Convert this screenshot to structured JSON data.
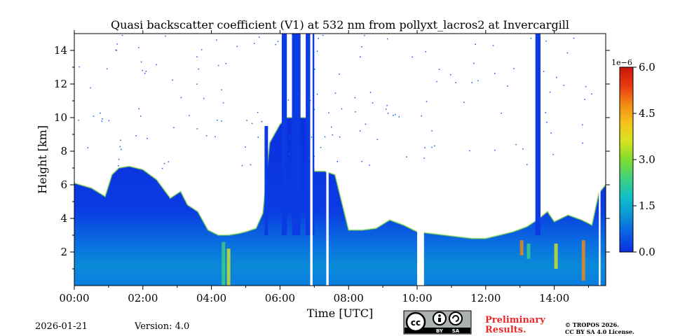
{
  "chart_data": {
    "type": "heatmap",
    "title": "Quasi backscatter coefficient (V1) at 532 nm from pollyxt_lacros2 at Invercargill",
    "xlabel": "Time [UTC]",
    "ylabel": "Height [km]",
    "x_ticks": [
      "00:00",
      "02:00",
      "04:00",
      "06:00",
      "08:00",
      "10:00",
      "12:00",
      "14:00"
    ],
    "y_ticks": [
      "2",
      "4",
      "6",
      "8",
      "10",
      "12",
      "14"
    ],
    "xlim_hours": [
      0,
      15.5
    ],
    "ylim_km": [
      0,
      15
    ],
    "colorbar": {
      "exponent": "1e−6",
      "ticks": [
        "0.0",
        "1.5",
        "3.0",
        "4.5",
        "6.0"
      ],
      "range": [
        0,
        6
      ],
      "colors": [
        "#0b2fe0",
        "#0a5fe3",
        "#0a96d6",
        "#10c0c6",
        "#3fd17e",
        "#7fdc2d",
        "#d8e420",
        "#f5c21a",
        "#f28a14",
        "#e8380e",
        "#c8160c"
      ]
    },
    "cloud_top_profile": {
      "hours": [
        0,
        0.5,
        0.9,
        1.1,
        1.3,
        1.6,
        2.0,
        2.4,
        2.8,
        3.1,
        3.3,
        3.6,
        3.9,
        4.2,
        4.5,
        4.8,
        5.0,
        5.3,
        5.5,
        5.7,
        6.0,
        6.2,
        6.5,
        6.8,
        7.0,
        7.3,
        7.6,
        8.0,
        8.4,
        8.8,
        9.2,
        9.6,
        10.0,
        10.4,
        10.8,
        11.2,
        11.6,
        12.0,
        12.4,
        12.8,
        13.2,
        13.5,
        13.8,
        14.0,
        14.4,
        14.8,
        15.1,
        15.3,
        15.5
      ],
      "top_km": [
        6.1,
        5.8,
        5.3,
        6.6,
        7.0,
        7.1,
        6.9,
        6.3,
        5.2,
        5.6,
        4.8,
        4.4,
        3.3,
        3.0,
        3.0,
        3.1,
        3.2,
        3.4,
        4.3,
        8.5,
        9.6,
        10.0,
        10.0,
        10.0,
        6.8,
        6.8,
        6.6,
        3.3,
        3.3,
        3.4,
        3.9,
        3.6,
        3.2,
        3.1,
        3.0,
        2.9,
        2.8,
        2.8,
        3.0,
        3.2,
        3.5,
        3.9,
        4.4,
        3.8,
        4.2,
        3.9,
        3.6,
        5.5,
        6.0
      ]
    }
  },
  "footer": {
    "date": "2026-01-21",
    "version": "Version: 4.0",
    "cc_label_by": "BY",
    "cc_label_sa": "SA",
    "prelim_line1": "Preliminary",
    "prelim_line2": "Results.",
    "copyright_line1": "© TROPOS 2026.",
    "copyright_line2": "CC BY SA 4.0 License."
  }
}
